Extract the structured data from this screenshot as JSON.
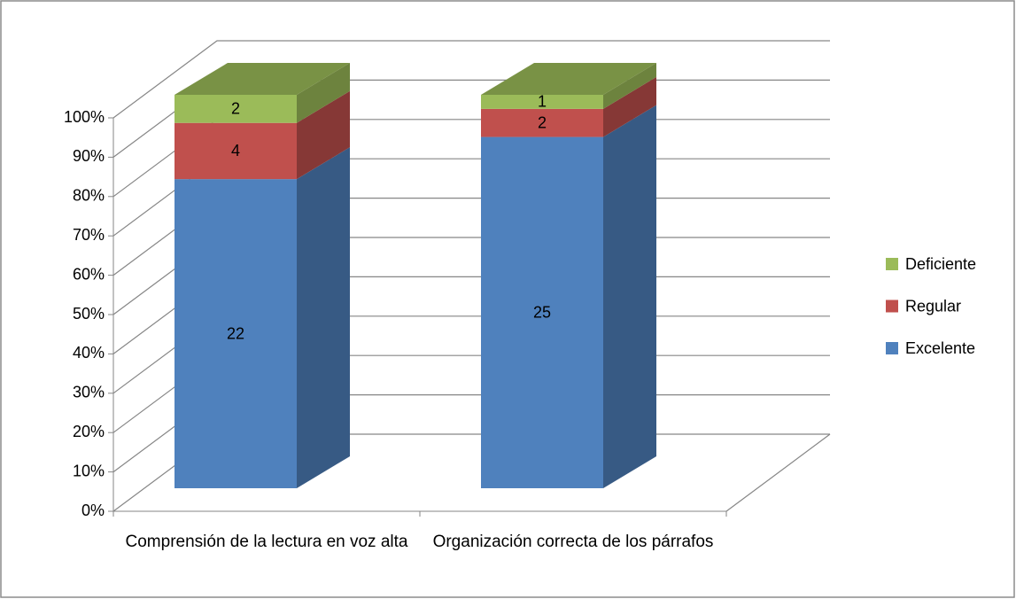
{
  "chart_data": {
    "type": "bar",
    "stacking": "percent",
    "categories": [
      "Comprensión de la lectura en voz alta",
      "Organización correcta de los párrafos"
    ],
    "series": [
      {
        "name": "Excelente",
        "color": "#4f81bd",
        "values": [
          22,
          25
        ]
      },
      {
        "name": "Regular",
        "color": "#c0504d",
        "values": [
          4,
          2
        ]
      },
      {
        "name": "Deficiente",
        "color": "#9bbb59",
        "values": [
          2,
          1
        ]
      }
    ],
    "ylim": [
      0,
      100
    ],
    "yticks": [
      {
        "value": 0,
        "label": "0%"
      },
      {
        "value": 10,
        "label": "10%"
      },
      {
        "value": 20,
        "label": "20%"
      },
      {
        "value": 30,
        "label": "30%"
      },
      {
        "value": 40,
        "label": "40%"
      },
      {
        "value": 50,
        "label": "50%"
      },
      {
        "value": 60,
        "label": "60%"
      },
      {
        "value": 70,
        "label": "70%"
      },
      {
        "value": 80,
        "label": "80%"
      },
      {
        "value": 90,
        "label": "90%"
      },
      {
        "value": 100,
        "label": "100%"
      }
    ],
    "grid": true,
    "legend": "right"
  }
}
